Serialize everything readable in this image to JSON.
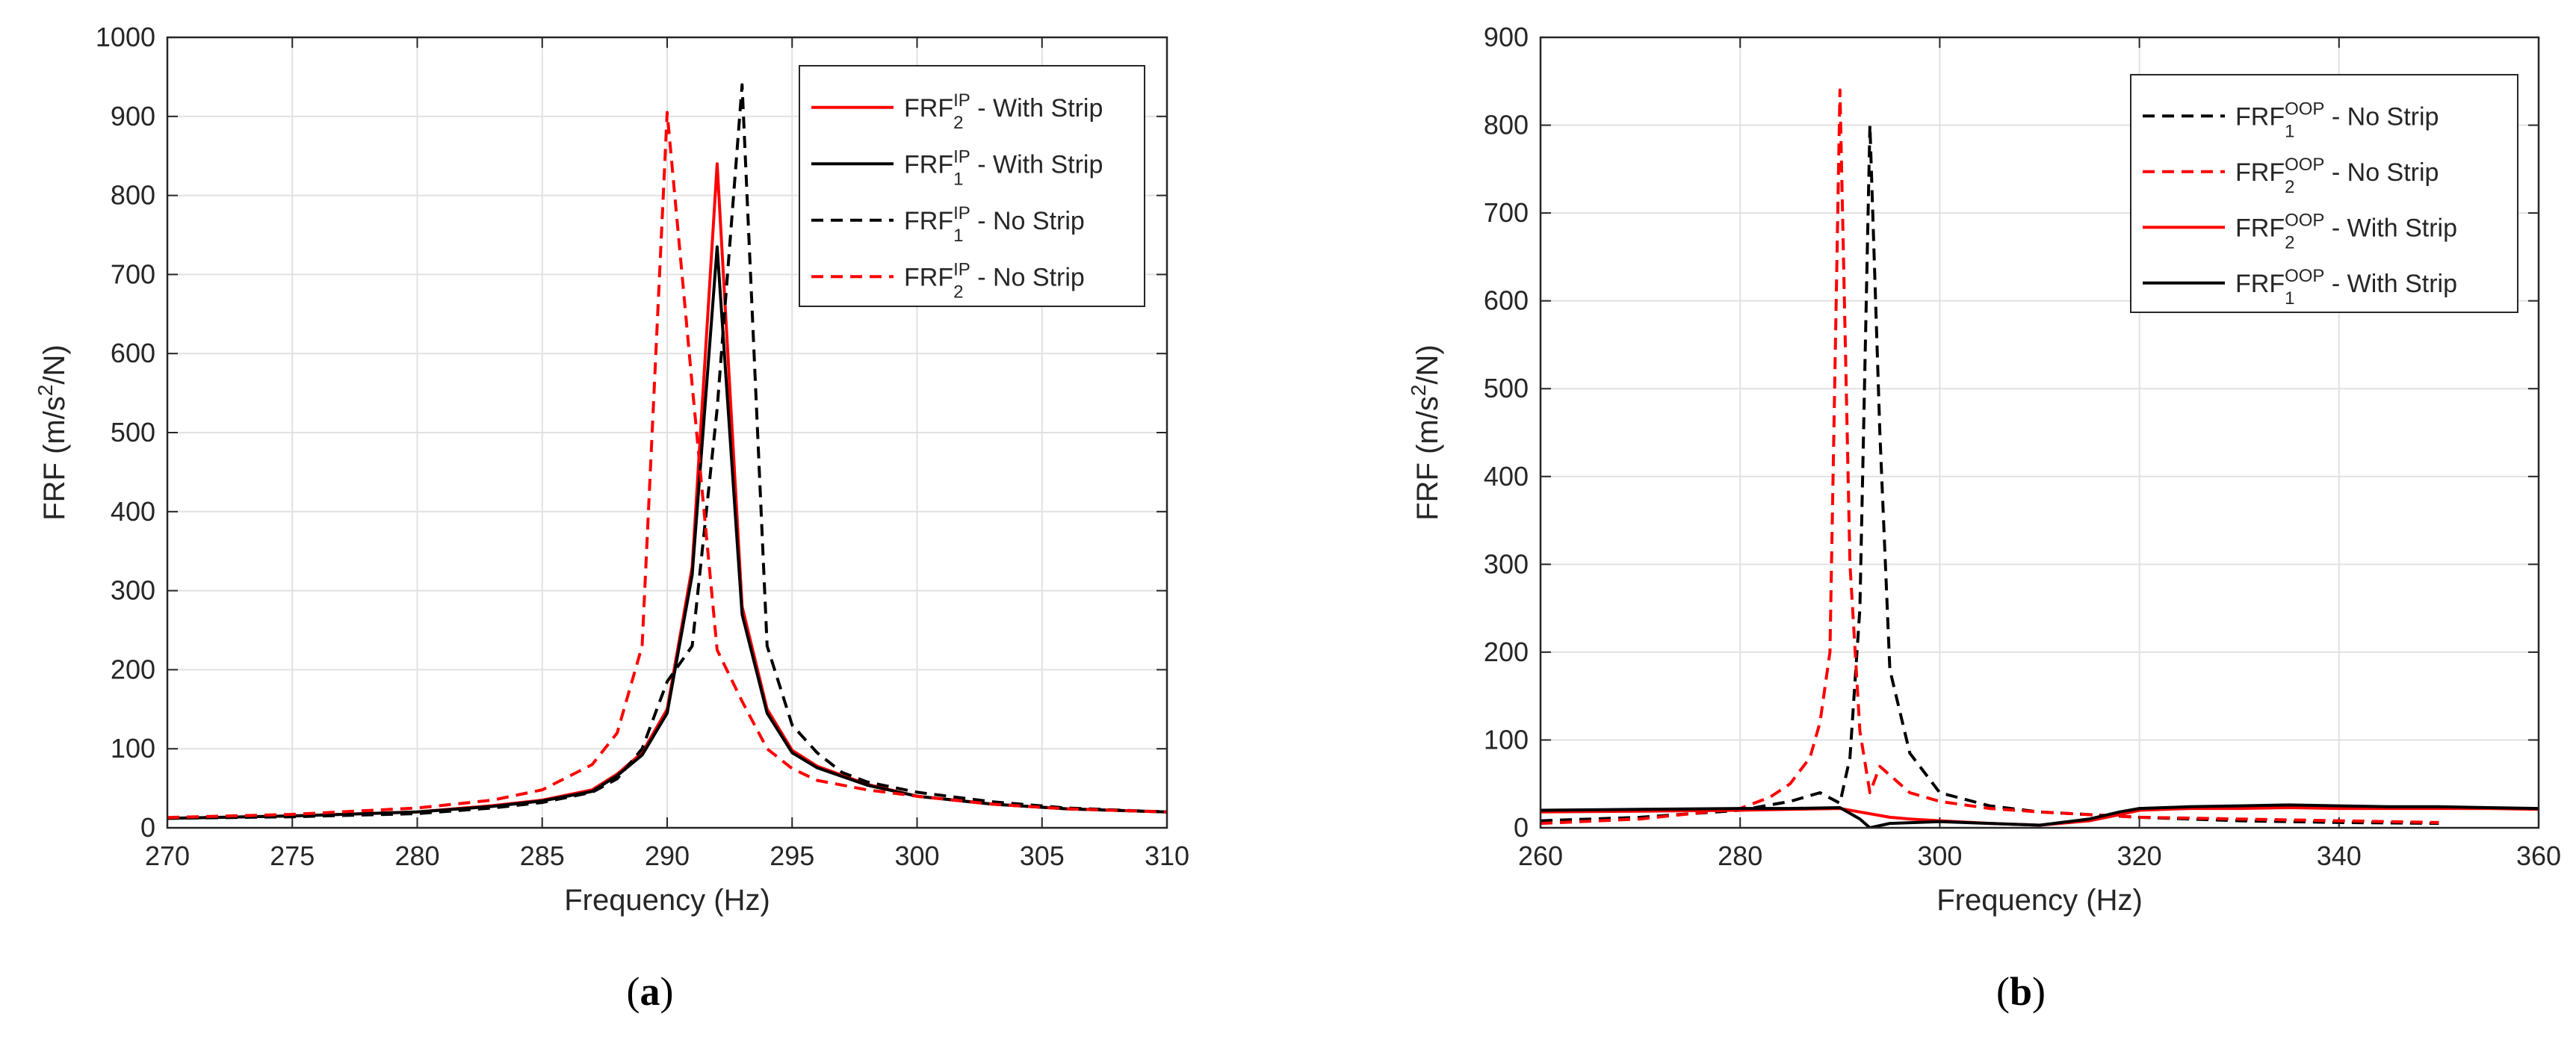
{
  "chart_data": [
    {
      "type": "line",
      "panel_label": "a",
      "xlabel": "Frequency (Hz)",
      "ylabel": "FRF (m/s²/N)",
      "ylabel_parts": {
        "pre": "FRF (m/s",
        "sup": "2",
        "post": "/N)"
      },
      "xlim": [
        270,
        310
      ],
      "ylim": [
        0,
        1000
      ],
      "xticks": [
        270,
        275,
        280,
        285,
        290,
        295,
        300,
        305,
        310
      ],
      "yticks": [
        0,
        100,
        200,
        300,
        400,
        500,
        600,
        700,
        800,
        900,
        1000
      ],
      "grid": true,
      "legend_position": "top-right",
      "series": [
        {
          "name": "FRF2IP - With Strip",
          "label_main": "FRF",
          "label_sup": "IP",
          "label_sub": "2",
          "label_tail": " - With Strip",
          "color": "#ff0000",
          "dash": "solid",
          "x": [
            270,
            275,
            280,
            283,
            285,
            287,
            288,
            289,
            290,
            291,
            292,
            293,
            294,
            295,
            296,
            298,
            300,
            303,
            306,
            310
          ],
          "y": [
            12,
            15,
            20,
            28,
            35,
            48,
            68,
            95,
            150,
            330,
            840,
            280,
            150,
            98,
            78,
            55,
            40,
            30,
            24,
            20
          ]
        },
        {
          "name": "FRF1IP - With Strip",
          "label_main": "FRF",
          "label_sup": "IP",
          "label_sub": "1",
          "label_tail": " - With Strip",
          "color": "#000000",
          "dash": "solid",
          "x": [
            270,
            275,
            280,
            283,
            285,
            287,
            288,
            289,
            290,
            291,
            292,
            293,
            294,
            295,
            296,
            298,
            300,
            303,
            306,
            310
          ],
          "y": [
            12,
            15,
            20,
            27,
            34,
            46,
            66,
            92,
            145,
            320,
            735,
            270,
            145,
            95,
            76,
            54,
            40,
            30,
            24,
            20
          ]
        },
        {
          "name": "FRF1IP - No Strip",
          "label_main": "FRF",
          "label_sup": "IP",
          "label_sub": "1",
          "label_tail": " - No Strip",
          "color": "#000000",
          "dash": "dashed",
          "x": [
            270,
            275,
            280,
            283,
            285,
            287,
            288,
            289,
            290,
            291,
            292,
            293,
            294,
            295,
            296,
            297,
            298,
            300,
            303,
            306,
            310
          ],
          "y": [
            12,
            14,
            18,
            25,
            32,
            45,
            62,
            100,
            185,
            230,
            530,
            940,
            230,
            130,
            95,
            70,
            58,
            45,
            33,
            25,
            20
          ]
        },
        {
          "name": "FRF2IP - No Strip",
          "label_main": "FRF",
          "label_sup": "IP",
          "label_sub": "2",
          "label_tail": " - No Strip",
          "color": "#ff0000",
          "dash": "dashed",
          "x": [
            270,
            275,
            280,
            283,
            285,
            287,
            288,
            289,
            290,
            291,
            292,
            293,
            294,
            295,
            296,
            298,
            300,
            303,
            306,
            310
          ],
          "y": [
            13,
            17,
            25,
            35,
            48,
            80,
            120,
            230,
            905,
            560,
            225,
            160,
            100,
            75,
            60,
            48,
            40,
            30,
            24,
            20
          ]
        }
      ]
    },
    {
      "type": "line",
      "panel_label": "b",
      "xlabel": "Frequency (Hz)",
      "ylabel": "FRF (m/s²/N)",
      "ylabel_parts": {
        "pre": "FRF (m/s",
        "sup": "2",
        "post": "/N)"
      },
      "xlim": [
        260,
        360
      ],
      "ylim": [
        0,
        900
      ],
      "xticks": [
        260,
        280,
        300,
        320,
        340,
        360
      ],
      "yticks": [
        0,
        100,
        200,
        300,
        400,
        500,
        600,
        700,
        800,
        900
      ],
      "grid": true,
      "legend_position": "top-right",
      "series": [
        {
          "name": "FRF1OOP - No Strip",
          "label_main": "FRF",
          "label_sup": "OOP",
          "label_sub": "1",
          "label_tail": " - No Strip",
          "color": "#000000",
          "dash": "dashed",
          "x": [
            260,
            270,
            280,
            285,
            288,
            290,
            291,
            292,
            293,
            294,
            295,
            297,
            300,
            305,
            310,
            320,
            330,
            340,
            350
          ],
          "y": [
            8,
            12,
            20,
            30,
            40,
            28,
            80,
            250,
            800,
            450,
            180,
            85,
            40,
            25,
            18,
            12,
            8,
            6,
            5
          ]
        },
        {
          "name": "FRF2OOP - No Strip",
          "label_main": "FRF",
          "label_sup": "OOP",
          "label_sub": "2",
          "label_tail": " - No Strip",
          "color": "#ff0000",
          "dash": "dashed",
          "x": [
            260,
            270,
            280,
            283,
            285,
            287,
            288,
            289,
            290,
            291,
            292,
            293,
            294,
            295,
            297,
            300,
            305,
            310,
            320,
            330,
            340,
            350
          ],
          "y": [
            5,
            10,
            22,
            35,
            50,
            80,
            120,
            200,
            840,
            300,
            110,
            40,
            70,
            60,
            40,
            30,
            22,
            18,
            12,
            10,
            8,
            6
          ]
        },
        {
          "name": "FRF2OOP - With Strip",
          "label_main": "FRF",
          "label_sup": "OOP",
          "label_sub": "2",
          "label_tail": " - With Strip",
          "color": "#ff0000",
          "dash": "solid",
          "x": [
            260,
            270,
            280,
            285,
            290,
            292,
            295,
            297,
            300,
            305,
            310,
            315,
            318,
            320,
            325,
            330,
            335,
            340,
            345,
            350,
            355,
            360
          ],
          "y": [
            18,
            19,
            20,
            21,
            22,
            18,
            12,
            10,
            8,
            5,
            3,
            8,
            15,
            20,
            22,
            22,
            23,
            22,
            22,
            22,
            22,
            21
          ]
        },
        {
          "name": "FRF1OOP - With Strip",
          "label_main": "FRF",
          "label_sup": "OOP",
          "label_sub": "1",
          "label_tail": " - With Strip",
          "color": "#000000",
          "dash": "solid",
          "x": [
            260,
            270,
            280,
            285,
            290,
            292,
            293,
            295,
            300,
            305,
            310,
            315,
            318,
            320,
            325,
            330,
            335,
            340,
            345,
            350,
            355,
            360
          ],
          "y": [
            20,
            21,
            22,
            22,
            23,
            10,
            0,
            5,
            7,
            5,
            3,
            10,
            18,
            22,
            24,
            25,
            26,
            25,
            24,
            24,
            23,
            22
          ]
        }
      ]
    }
  ]
}
